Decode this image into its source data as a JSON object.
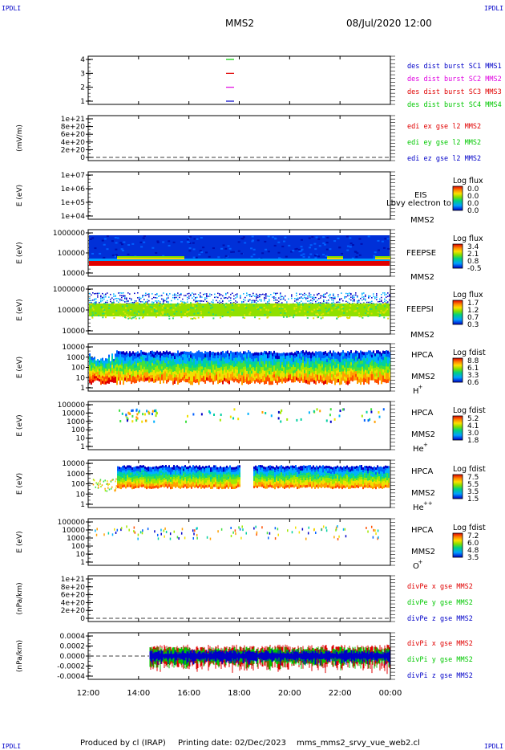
{
  "header": {
    "corner_label": "IPDLI",
    "spacecraft": "MMS2",
    "datetime": "08/Jul/2020 12:00"
  },
  "footer": {
    "produced_by": "Produced by cl (IRAP)",
    "printing_date": "Printing date: 02/Dec/2023",
    "script_name": "mms_mms2_srvy_vue_web2.cl"
  },
  "time_axis": {
    "ticks": [
      "12:00",
      "14:00",
      "16:00",
      "18:00",
      "20:00",
      "22:00",
      "00:00"
    ]
  },
  "colors": {
    "sc1": "#0000c8",
    "sc2": "#e000e0",
    "sc3": "#e00000",
    "sc4": "#00c800",
    "x": "#e00000",
    "y": "#00c800",
    "z": "#0000c8"
  },
  "chart_data": [
    {
      "id": "burst",
      "type": "line",
      "ylabel": "",
      "yticks": [
        "4",
        "3",
        "2",
        "1"
      ],
      "ylim": [
        0.5,
        4.5
      ],
      "series": [
        {
          "name": "des dist burst SC1 MMS1",
          "color": "#0000c8",
          "level": 1
        },
        {
          "name": "des dist burst SC2 MMS2",
          "color": "#e000e0",
          "level": 2
        },
        {
          "name": "des dist burst SC3 MMS3",
          "color": "#e00000",
          "level": 3
        },
        {
          "name": "des dist burst SC4 MMS4",
          "color": "#00c800",
          "level": 4
        }
      ]
    },
    {
      "id": "edi",
      "type": "line",
      "ylabel": "(mV/m)",
      "yticks": [
        "1e+21",
        "8e+20",
        "6e+20",
        "4e+20",
        "2e+20",
        "0"
      ],
      "ylim": [
        0,
        1e+21
      ],
      "series": [
        {
          "name": "edi ex gse l2 MMS2",
          "color": "#e00000"
        },
        {
          "name": "edi ey gse l2 MMS2",
          "color": "#00c800"
        },
        {
          "name": "edi ez gse l2 MMS2",
          "color": "#0000c8"
        }
      ]
    },
    {
      "id": "eis",
      "type": "heatmap",
      "ylabel": "E (eV)",
      "yticks": [
        "1e+07",
        "1e+06",
        "1e+05",
        "1e+04"
      ],
      "ylim": [
        10000.0,
        10000000.0
      ],
      "labels": [
        "EIS",
        "MMS2"
      ],
      "overlay": "Lbvy electron to",
      "colorbar": {
        "title": "Log flux",
        "ticks": [
          "0.0",
          "0.0",
          "0.0",
          "0.0"
        ]
      }
    },
    {
      "id": "feepse",
      "type": "heatmap",
      "ylabel": "E (eV)",
      "yticks": [
        "1000000",
        "100000",
        "10000"
      ],
      "ylim": [
        10000.0,
        1000000.0
      ],
      "labels": [
        "FEEPSE",
        "MMS2"
      ],
      "colorbar": {
        "title": "Log flux",
        "ticks": [
          "3.4",
          "2.1",
          "0.8",
          "-0.5"
        ]
      }
    },
    {
      "id": "feepsi",
      "type": "heatmap",
      "ylabel": "E (eV)",
      "yticks": [
        "1000000",
        "100000",
        "10000"
      ],
      "ylim": [
        10000.0,
        1000000.0
      ],
      "labels": [
        "FEEPSI",
        "MMS2"
      ],
      "colorbar": {
        "title": "Log flux",
        "ticks": [
          "1.7",
          "1.2",
          "0.7",
          "0.3"
        ]
      }
    },
    {
      "id": "hpca_h",
      "type": "heatmap",
      "ylabel": "E (eV)",
      "yticks": [
        "10000",
        "1000",
        "100",
        "10",
        "1"
      ],
      "ylim": [
        1,
        30000
      ],
      "labels": [
        "HPCA",
        "MMS2",
        "H",
        "+"
      ],
      "colorbar": {
        "title": "Log fdist",
        "ticks": [
          "8.8",
          "6.1",
          "3.3",
          "0.6"
        ]
      }
    },
    {
      "id": "hpca_he1",
      "type": "heatmap",
      "ylabel": "E (eV)",
      "yticks": [
        "100000",
        "10000",
        "1000",
        "100",
        "10",
        "1"
      ],
      "ylim": [
        1,
        100000
      ],
      "labels": [
        "HPCA",
        "MMS2",
        "He",
        "+"
      ],
      "colorbar": {
        "title": "Log fdist",
        "ticks": [
          "5.2",
          "4.1",
          "3.0",
          "1.8"
        ]
      }
    },
    {
      "id": "hpca_he2",
      "type": "heatmap",
      "ylabel": "E (eV)",
      "yticks": [
        "10000",
        "1000",
        "100",
        "10",
        "1"
      ],
      "ylim": [
        1,
        30000
      ],
      "labels": [
        "HPCA",
        "MMS2",
        "He",
        "++"
      ],
      "colorbar": {
        "title": "Log fdist",
        "ticks": [
          "7.5",
          "5.5",
          "3.5",
          "1.5"
        ]
      }
    },
    {
      "id": "hpca_o",
      "type": "heatmap",
      "ylabel": "E (eV)",
      "yticks": [
        "100000",
        "10000",
        "1000",
        "100",
        "10",
        "1"
      ],
      "ylim": [
        1,
        100000
      ],
      "labels": [
        "HPCA",
        "MMS2",
        "O",
        "+"
      ],
      "colorbar": {
        "title": "Log fdist",
        "ticks": [
          "7.2",
          "6.0",
          "4.8",
          "3.5"
        ]
      }
    },
    {
      "id": "divpe",
      "type": "line",
      "ylabel": "(nPa/km)",
      "yticks": [
        "1e+21",
        "8e+20",
        "6e+20",
        "4e+20",
        "2e+20",
        "0"
      ],
      "ylim": [
        0,
        1e+21
      ],
      "series": [
        {
          "name": "divPe x gse MMS2",
          "color": "#e00000"
        },
        {
          "name": "divPe y gse MMS2",
          "color": "#00c800"
        },
        {
          "name": "divPe z gse MMS2",
          "color": "#0000c8"
        }
      ]
    },
    {
      "id": "divpi",
      "type": "line",
      "ylabel": "(nPa/km)",
      "yticks": [
        "0.0004",
        "0.0002",
        "0.0000",
        "-0.0002",
        "-0.0004"
      ],
      "ylim": [
        -0.0005,
        0.0005
      ],
      "series": [
        {
          "name": "divPi x gse MMS2",
          "color": "#e00000"
        },
        {
          "name": "divPi y gse MMS2",
          "color": "#00c800"
        },
        {
          "name": "divPi z gse MMS2",
          "color": "#0000c8"
        }
      ]
    }
  ]
}
